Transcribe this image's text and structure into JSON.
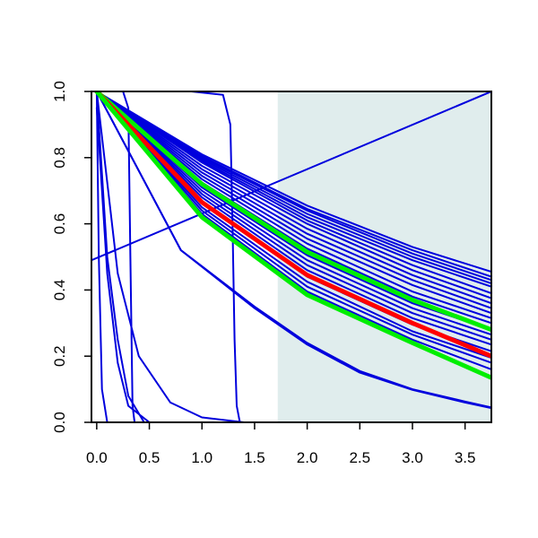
{
  "chart_data": {
    "type": "line",
    "title": "",
    "xlabel": "",
    "ylabel": "",
    "xlim": [
      -0.05,
      3.75
    ],
    "ylim": [
      0.0,
      1.0
    ],
    "x_ticks": [
      0.0,
      0.5,
      1.0,
      1.5,
      2.0,
      2.5,
      3.0,
      3.5
    ],
    "x_tick_labels": [
      "0.0",
      "0.5",
      "1.0",
      "1.5",
      "2.0",
      "2.5",
      "3.0",
      "3.5"
    ],
    "y_ticks": [
      0.0,
      0.2,
      0.4,
      0.6,
      0.8,
      1.0
    ],
    "y_tick_labels": [
      "0.0",
      "0.2",
      "0.4",
      "0.6",
      "0.8",
      "1.0"
    ],
    "grid": false,
    "legend": "none",
    "shaded_region": {
      "x_from": 1.72,
      "x_to": 3.75,
      "color": "#e0eded"
    },
    "colors": {
      "blue": "#0000dd",
      "red": "#ff0000",
      "green": "#00ee00",
      "axis": "#000000"
    },
    "series": [
      {
        "color": "blue",
        "width": 2,
        "x": [
          -0.05,
          3.75
        ],
        "y": [
          0.49,
          1.0
        ]
      },
      {
        "color": "blue",
        "width": 2,
        "x": [
          0.0,
          0.8,
          1.5,
          2.0,
          2.5,
          3.0,
          3.5,
          3.75
        ],
        "y": [
          1.0,
          0.52,
          0.35,
          0.24,
          0.155,
          0.1,
          0.063,
          0.045
        ]
      },
      {
        "color": "blue",
        "width": 2,
        "x": [
          0.0,
          0.8,
          1.5,
          2.0,
          2.5,
          3.0,
          3.5,
          3.75
        ],
        "y": [
          1.0,
          0.52,
          0.345,
          0.235,
          0.15,
          0.098,
          0.06,
          0.043
        ]
      },
      {
        "color": "blue",
        "width": 2,
        "x": [
          0.0,
          0.2,
          0.4,
          0.7,
          1.0,
          1.4
        ],
        "y": [
          1.0,
          0.45,
          0.2,
          0.06,
          0.015,
          0.0
        ]
      },
      {
        "color": "blue",
        "width": 2,
        "x": [
          0.0,
          0.1,
          0.2,
          0.3,
          0.45
        ],
        "y": [
          1.0,
          0.5,
          0.25,
          0.08,
          0.0
        ]
      },
      {
        "color": "blue",
        "width": 2,
        "x": [
          0.0,
          0.1,
          0.2,
          0.3,
          0.5
        ],
        "y": [
          0.95,
          0.45,
          0.18,
          0.05,
          0.0
        ]
      },
      {
        "color": "blue",
        "width": 2,
        "x": [
          0.0,
          0.02,
          0.05,
          0.1
        ],
        "y": [
          1.0,
          0.5,
          0.1,
          0.0
        ]
      },
      {
        "color": "blue",
        "width": 2,
        "x": [
          0.25,
          0.3,
          0.32,
          0.34,
          0.36,
          0.4
        ],
        "y": [
          1.0,
          0.95,
          0.5,
          0.05,
          0.0,
          0.0
        ]
      },
      {
        "color": "blue",
        "width": 2,
        "x": [
          0.0,
          0.9,
          1.2,
          1.27,
          1.29,
          1.31,
          1.33,
          1.36,
          1.45,
          2.0
        ],
        "y": [
          1.0,
          1.0,
          0.99,
          0.9,
          0.6,
          0.25,
          0.05,
          0.0,
          0.0,
          0.0
        ]
      },
      {
        "color": "blue",
        "width": 2,
        "x": [
          0.0,
          1.0,
          2.0,
          3.0,
          3.75
        ],
        "y": [
          1.0,
          0.81,
          0.655,
          0.53,
          0.455
        ]
      },
      {
        "color": "blue",
        "width": 2,
        "x": [
          0.0,
          1.0,
          2.0,
          3.0,
          3.75
        ],
        "y": [
          1.0,
          0.805,
          0.645,
          0.52,
          0.44
        ]
      },
      {
        "color": "blue",
        "width": 2,
        "x": [
          0.0,
          1.0,
          2.0,
          3.0,
          3.75
        ],
        "y": [
          1.0,
          0.8,
          0.64,
          0.51,
          0.43
        ]
      },
      {
        "color": "blue",
        "width": 2,
        "x": [
          0.0,
          1.0,
          2.0,
          3.0,
          3.75
        ],
        "y": [
          1.0,
          0.795,
          0.63,
          0.5,
          0.42
        ]
      },
      {
        "color": "blue",
        "width": 2,
        "x": [
          0.0,
          1.0,
          2.0,
          3.0,
          3.75
        ],
        "y": [
          1.0,
          0.79,
          0.62,
          0.49,
          0.41
        ]
      },
      {
        "color": "blue",
        "width": 2,
        "x": [
          0.0,
          1.0,
          2.0,
          3.0,
          3.75
        ],
        "y": [
          1.0,
          0.785,
          0.61,
          0.475,
          0.39
        ]
      },
      {
        "color": "blue",
        "width": 2,
        "x": [
          0.0,
          1.0,
          2.0,
          3.0,
          3.75
        ],
        "y": [
          1.0,
          0.775,
          0.6,
          0.46,
          0.375
        ]
      },
      {
        "color": "blue",
        "width": 2,
        "x": [
          0.0,
          1.0,
          2.0,
          3.0,
          3.75
        ],
        "y": [
          1.0,
          0.765,
          0.585,
          0.445,
          0.36
        ]
      },
      {
        "color": "blue",
        "width": 2,
        "x": [
          0.0,
          1.0,
          2.0,
          3.0,
          3.75
        ],
        "y": [
          1.0,
          0.755,
          0.57,
          0.43,
          0.345
        ]
      },
      {
        "color": "blue",
        "width": 2,
        "x": [
          0.0,
          1.0,
          2.0,
          3.0,
          3.75
        ],
        "y": [
          1.0,
          0.745,
          0.555,
          0.415,
          0.33
        ]
      },
      {
        "color": "blue",
        "width": 2,
        "x": [
          0.0,
          1.0,
          2.0,
          3.0,
          3.75
        ],
        "y": [
          1.0,
          0.735,
          0.54,
          0.395,
          0.315
        ]
      },
      {
        "color": "blue",
        "width": 2,
        "x": [
          0.0,
          1.0,
          2.0,
          3.0,
          3.75
        ],
        "y": [
          1.0,
          0.725,
          0.525,
          0.38,
          0.3
        ]
      },
      {
        "color": "blue",
        "width": 2,
        "x": [
          0.0,
          1.0,
          2.0,
          3.0,
          3.75
        ],
        "y": [
          1.0,
          0.71,
          0.505,
          0.36,
          0.28
        ]
      },
      {
        "color": "blue",
        "width": 2,
        "x": [
          0.0,
          1.0,
          2.0,
          3.0,
          3.75
        ],
        "y": [
          1.0,
          0.7,
          0.49,
          0.345,
          0.265
        ]
      },
      {
        "color": "blue",
        "width": 2,
        "x": [
          0.0,
          1.0,
          2.0,
          3.0,
          3.75
        ],
        "y": [
          1.0,
          0.69,
          0.475,
          0.33,
          0.25
        ]
      },
      {
        "color": "blue",
        "width": 2,
        "x": [
          0.0,
          1.0,
          2.0,
          3.0,
          3.75
        ],
        "y": [
          1.0,
          0.68,
          0.46,
          0.315,
          0.235
        ]
      },
      {
        "color": "blue",
        "width": 2,
        "x": [
          0.0,
          1.0,
          2.0,
          3.0,
          3.75
        ],
        "y": [
          1.0,
          0.665,
          0.44,
          0.295,
          0.215
        ]
      },
      {
        "color": "blue",
        "width": 2,
        "x": [
          0.0,
          1.0,
          2.0,
          3.0,
          3.75
        ],
        "y": [
          1.0,
          0.65,
          0.425,
          0.275,
          0.195
        ]
      },
      {
        "color": "blue",
        "width": 2,
        "x": [
          0.0,
          1.0,
          2.0,
          3.0,
          3.75
        ],
        "y": [
          1.0,
          0.64,
          0.41,
          0.265,
          0.18
        ]
      },
      {
        "color": "blue",
        "width": 2,
        "x": [
          0.0,
          1.0,
          2.0,
          3.0,
          3.75
        ],
        "y": [
          1.0,
          0.63,
          0.395,
          0.25,
          0.16
        ]
      },
      {
        "color": "green",
        "width": 5,
        "x": [
          0.0,
          1.0,
          2.0,
          3.0,
          3.75
        ],
        "y": [
          1.0,
          0.72,
          0.515,
          0.37,
          0.28
        ]
      },
      {
        "color": "red",
        "width": 5,
        "x": [
          0.0,
          1.0,
          2.0,
          3.0,
          3.75
        ],
        "y": [
          1.0,
          0.665,
          0.445,
          0.3,
          0.2
        ]
      },
      {
        "color": "green",
        "width": 5,
        "x": [
          0.0,
          1.0,
          2.0,
          3.0,
          3.75
        ],
        "y": [
          1.0,
          0.62,
          0.385,
          0.24,
          0.135
        ]
      }
    ]
  }
}
